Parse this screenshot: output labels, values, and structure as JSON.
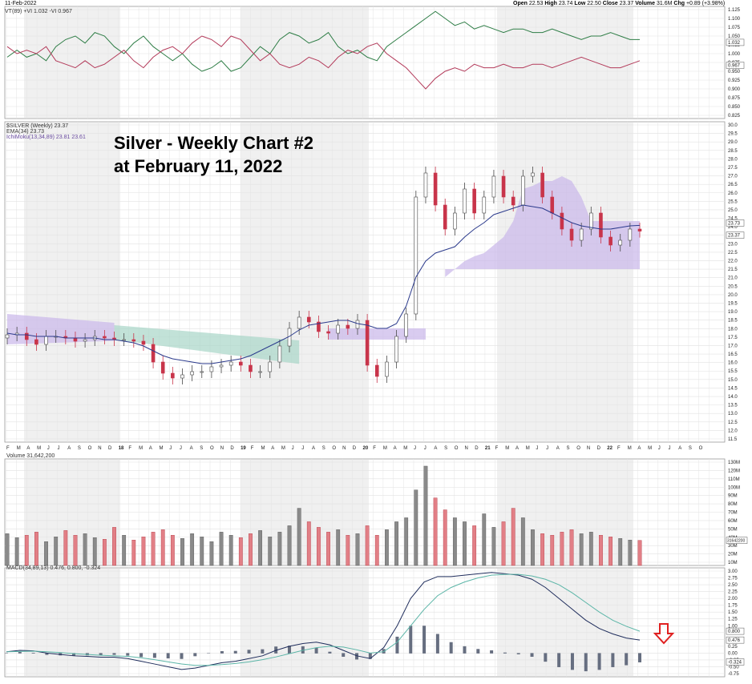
{
  "header": {
    "date": "11-Feb-2022",
    "open_label": "Open",
    "open": "22.53",
    "high_label": "High",
    "high": "23.74",
    "low_label": "Low",
    "low": "22.50",
    "close_label": "Close",
    "close": "23.37",
    "volume_label": "Volume",
    "volume": "31.6M",
    "chg_label": "Chg",
    "chg": "+0.89 (+3.98%)"
  },
  "annotation": {
    "line1": "Silver - Weekly Chart #2",
    "line2": "at February 11, 2022"
  },
  "colors": {
    "up": "#4a4a4a",
    "down": "#c8344a",
    "ema": "#2b3a8c",
    "cloud_bull": "#c9b6ea",
    "cloud_bear": "#a8d5c8",
    "vtplus": "#2e7d46",
    "vtminus": "#b33a5a",
    "macd": "#1f2d5c",
    "signal": "#5bb5a7",
    "hist": "#666e80",
    "arrow": "#e02020"
  },
  "panels": {
    "vt_legend": "VT(89) +VI 1.032 -VI 0.967",
    "price_legend": [
      "$SILVER (Weekly) 23.37",
      "EMA(34) 23.73",
      "IchiMoku(13,34,89) 23.81 23.61"
    ],
    "volume_legend": "Volume 31,642,200",
    "macd_legend": "MACD(34,89,13) 0.476, 0.800, -0.324"
  },
  "chart_data": [
    {
      "type": "line",
      "title": "VT(89)",
      "series": [
        {
          "name": "+VI",
          "values": [
            0.99,
            1.01,
            0.99,
            1.0,
            0.98,
            1.02,
            1.04,
            1.05,
            1.03,
            1.06,
            1.05,
            1.02,
            1.0,
            1.03,
            1.05,
            1.02,
            1.0,
            0.98,
            1.0,
            0.97,
            0.95,
            0.96,
            0.98,
            0.95,
            0.96,
            0.99,
            1.02,
            1.0,
            1.04,
            1.06,
            1.05,
            1.03,
            1.04,
            1.06,
            1.02,
            1.0,
            1.01,
            0.99,
            0.98,
            1.02,
            1.04,
            1.06,
            1.08,
            1.1,
            1.12,
            1.1,
            1.08,
            1.09,
            1.07,
            1.08,
            1.07,
            1.06,
            1.07,
            1.07,
            1.06,
            1.06,
            1.07,
            1.06,
            1.05,
            1.04,
            1.05,
            1.05,
            1.06,
            1.05,
            1.04,
            1.04
          ]
        },
        {
          "name": "-VI",
          "values": [
            1.02,
            1.0,
            1.01,
            1.0,
            1.02,
            0.98,
            0.97,
            0.96,
            0.98,
            0.96,
            0.97,
            0.99,
            1.01,
            0.98,
            0.96,
            0.99,
            1.01,
            1.02,
            1.0,
            1.03,
            1.05,
            1.04,
            1.02,
            1.05,
            1.04,
            1.01,
            0.98,
            1.0,
            0.97,
            0.96,
            0.97,
            0.99,
            0.98,
            0.96,
            0.99,
            1.01,
            1.0,
            1.02,
            1.03,
            1.0,
            0.98,
            0.96,
            0.93,
            0.9,
            0.93,
            0.95,
            0.96,
            0.95,
            0.97,
            0.96,
            0.96,
            0.97,
            0.96,
            0.96,
            0.97,
            0.97,
            0.96,
            0.97,
            0.98,
            0.99,
            0.98,
            0.97,
            0.96,
            0.96,
            0.97,
            0.98
          ]
        }
      ],
      "ylim": [
        0.825,
        1.125
      ],
      "yticks": [
        "1.125",
        "1.100",
        "1.075",
        "1.050",
        "1.025",
        "1.000",
        "0.975",
        "0.950",
        "0.925",
        "0.900",
        "0.875",
        "0.850",
        "0.825"
      ],
      "last_labels": [
        "1.032",
        "0.967"
      ]
    },
    {
      "type": "line",
      "title": "$SILVER (Weekly)",
      "series": [
        {
          "name": "$SILVER",
          "values": [
            16.9,
            17.0,
            16.6,
            16.3,
            16.8,
            16.8,
            16.7,
            16.5,
            16.6,
            16.8,
            16.7,
            16.6,
            16.6,
            16.5,
            16.3,
            15.2,
            14.5,
            14.2,
            14.4,
            14.6,
            14.6,
            14.9,
            15.0,
            15.2,
            15.0,
            14.6,
            14.6,
            15.2,
            16.2,
            17.3,
            18.0,
            17.7,
            17.1,
            17.0,
            17.5,
            17.3,
            17.8,
            15.0,
            14.3,
            15.2,
            16.8,
            18.2,
            25.5,
            27.0,
            25.0,
            23.5,
            24.5,
            26.0,
            24.5,
            25.5,
            26.8,
            25.5,
            25.0,
            26.8,
            27.0,
            25.5,
            24.5,
            23.5,
            22.8,
            23.5,
            24.5,
            23.0,
            22.5,
            22.8,
            23.5,
            23.37
          ]
        },
        {
          "name": "EMA(34)",
          "values": [
            17.0,
            16.9,
            16.9,
            16.8,
            16.8,
            16.8,
            16.7,
            16.7,
            16.7,
            16.7,
            16.6,
            16.6,
            16.5,
            16.4,
            16.2,
            15.9,
            15.6,
            15.4,
            15.3,
            15.2,
            15.1,
            15.1,
            15.2,
            15.3,
            15.4,
            15.6,
            15.9,
            16.2,
            16.5,
            16.8,
            17.2,
            17.5,
            17.6,
            17.7,
            17.8,
            17.8,
            17.6,
            17.5,
            17.3,
            17.3,
            17.6,
            18.7,
            20.5,
            21.5,
            22.0,
            22.2,
            22.4,
            23.0,
            23.5,
            23.9,
            24.4,
            24.6,
            24.8,
            25.0,
            24.9,
            24.8,
            24.5,
            24.2,
            23.9,
            23.7,
            23.6,
            23.5,
            23.5,
            23.6,
            23.7,
            23.73
          ]
        }
      ],
      "ylim": [
        11.5,
        30.5
      ],
      "yticks": [
        "30.0",
        "29.5",
        "29.0",
        "28.5",
        "28.0",
        "27.5",
        "27.0",
        "26.5",
        "26.0",
        "25.5",
        "25.0",
        "24.5",
        "24.0",
        "23.5",
        "23.0",
        "22.5",
        "22.0",
        "21.5",
        "21.0",
        "20.5",
        "20.0",
        "19.5",
        "19.0",
        "18.5",
        "18.0",
        "17.5",
        "17.0",
        "16.5",
        "16.0",
        "15.5",
        "15.0",
        "14.5",
        "14.0",
        "13.5",
        "13.0",
        "12.5",
        "12.0",
        "11.5"
      ],
      "x_ticks": [
        "F",
        "M",
        "A",
        "M",
        "J",
        "J",
        "A",
        "S",
        "O",
        "N",
        "D",
        "18",
        "F",
        "M",
        "A",
        "M",
        "J",
        "J",
        "A",
        "S",
        "O",
        "N",
        "D",
        "19",
        "F",
        "M",
        "A",
        "M",
        "J",
        "J",
        "A",
        "S",
        "O",
        "N",
        "D",
        "20",
        "F",
        "M",
        "A",
        "M",
        "J",
        "J",
        "A",
        "S",
        "O",
        "N",
        "D",
        "21",
        "F",
        "M",
        "A",
        "M",
        "J",
        "J",
        "A",
        "S",
        "O",
        "N",
        "D",
        "22",
        "F",
        "M",
        "A",
        "M",
        "J",
        "J",
        "A",
        "S",
        "O"
      ],
      "last_labels": [
        "23.73",
        "23.37"
      ]
    },
    {
      "type": "bar",
      "title": "Volume",
      "values": [
        40,
        35,
        38,
        42,
        30,
        36,
        44,
        38,
        40,
        35,
        33,
        48,
        38,
        32,
        36,
        42,
        45,
        38,
        34,
        40,
        36,
        30,
        42,
        38,
        35,
        40,
        44,
        36,
        42,
        50,
        72,
        55,
        48,
        42,
        45,
        38,
        40,
        50,
        38,
        45,
        55,
        60,
        95,
        125,
        85,
        70,
        60,
        55,
        50,
        65,
        48,
        55,
        72,
        60,
        45,
        40,
        38,
        42,
        45,
        40,
        42,
        38,
        36,
        34,
        32,
        31.6
      ],
      "ylim": [
        0,
        130
      ],
      "yticks": [
        "130M",
        "120M",
        "110M",
        "100M",
        "90M",
        "80M",
        "70M",
        "60M",
        "50M",
        "40M",
        "30M",
        "20M",
        "10M"
      ],
      "last_label": "31642200"
    },
    {
      "type": "line",
      "title": "MACD(34,89,13)",
      "series": [
        {
          "name": "MACD",
          "values": [
            0.05,
            0.1,
            0.08,
            0.0,
            -0.05,
            -0.1,
            -0.12,
            -0.15,
            -0.15,
            -0.2,
            -0.3,
            -0.4,
            -0.5,
            -0.6,
            -0.55,
            -0.45,
            -0.35,
            -0.3,
            -0.2,
            -0.1,
            0.1,
            0.25,
            0.35,
            0.4,
            0.3,
            0.1,
            -0.1,
            -0.2,
            0.2,
            1.0,
            2.0,
            2.6,
            2.8,
            2.8,
            2.85,
            2.9,
            2.95,
            2.9,
            2.85,
            2.7,
            2.4,
            2.0,
            1.6,
            1.2,
            0.9,
            0.7,
            0.55,
            0.476
          ]
        },
        {
          "name": "Signal",
          "values": [
            0.05,
            0.06,
            0.07,
            0.05,
            0.02,
            -0.02,
            -0.05,
            -0.08,
            -0.1,
            -0.12,
            -0.17,
            -0.24,
            -0.32,
            -0.4,
            -0.45,
            -0.45,
            -0.42,
            -0.38,
            -0.32,
            -0.24,
            -0.14,
            -0.02,
            0.1,
            0.2,
            0.25,
            0.22,
            0.12,
            0.0,
            0.05,
            0.4,
            1.0,
            1.6,
            2.1,
            2.4,
            2.6,
            2.75,
            2.85,
            2.88,
            2.88,
            2.82,
            2.7,
            2.5,
            2.2,
            1.85,
            1.5,
            1.2,
            0.98,
            0.8
          ]
        }
      ],
      "ylim": [
        -0.75,
        3.1
      ],
      "yticks": [
        "3.00",
        "2.75",
        "2.50",
        "2.25",
        "2.00",
        "1.75",
        "1.50",
        "1.25",
        "1.00",
        "0.75",
        "0.50",
        "0.25",
        "0.00",
        "-0.25",
        "-0.50",
        "-0.75"
      ],
      "last_labels": [
        "0.800",
        "0.476",
        "-0.324"
      ]
    }
  ]
}
